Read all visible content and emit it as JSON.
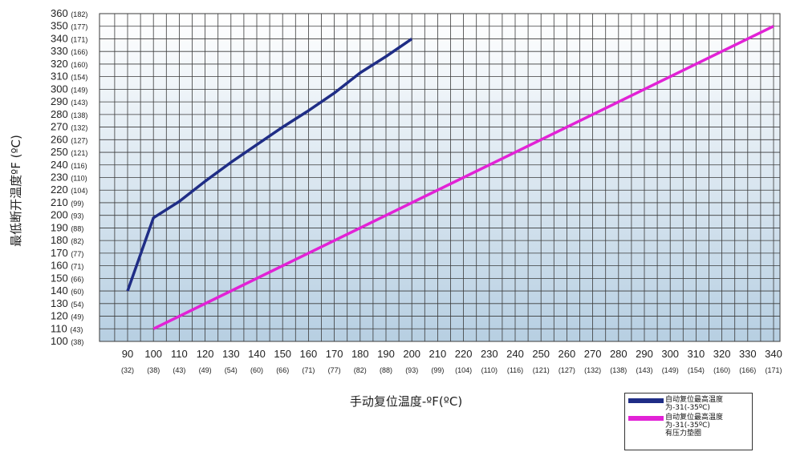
{
  "colors": {
    "series1": "#1f2d86",
    "series2": "#e222d6",
    "grid": "#3a3a3a",
    "bg_top": "#ffffff",
    "bg_bottom": "#b7cfe2"
  },
  "chart_data": {
    "type": "line",
    "xlabel": "手动复位温度-ºF(ºC)",
    "ylabel": "最低断开温度ºF (ºC)",
    "xlim": [
      90,
      340
    ],
    "ylim": [
      100,
      360
    ],
    "grid": true,
    "legend_position": "bottom-right",
    "x_ticks": [
      {
        "f": "90",
        "c": "(32)"
      },
      {
        "f": "100",
        "c": "(38)"
      },
      {
        "f": "110",
        "c": "(43)"
      },
      {
        "f": "120",
        "c": "(49)"
      },
      {
        "f": "130",
        "c": "(54)"
      },
      {
        "f": "140",
        "c": "(60)"
      },
      {
        "f": "150",
        "c": "(66)"
      },
      {
        "f": "160",
        "c": "(71)"
      },
      {
        "f": "170",
        "c": "(77)"
      },
      {
        "f": "180",
        "c": "(82)"
      },
      {
        "f": "190",
        "c": "(88)"
      },
      {
        "f": "200",
        "c": "(93)"
      },
      {
        "f": "210",
        "c": "(99)"
      },
      {
        "f": "220",
        "c": "(104)"
      },
      {
        "f": "230",
        "c": "(110)"
      },
      {
        "f": "240",
        "c": "(116)"
      },
      {
        "f": "250",
        "c": "(121)"
      },
      {
        "f": "260",
        "c": "(127)"
      },
      {
        "f": "270",
        "c": "(132)"
      },
      {
        "f": "280",
        "c": "(138)"
      },
      {
        "f": "290",
        "c": "(143)"
      },
      {
        "f": "300",
        "c": "(149)"
      },
      {
        "f": "310",
        "c": "(154)"
      },
      {
        "f": "320",
        "c": "(160)"
      },
      {
        "f": "330",
        "c": "(166)"
      },
      {
        "f": "340",
        "c": "(171)"
      }
    ],
    "y_ticks": [
      {
        "f": "100",
        "c": "(38)"
      },
      {
        "f": "110",
        "c": "(43)"
      },
      {
        "f": "120",
        "c": "(49)"
      },
      {
        "f": "130",
        "c": "(54)"
      },
      {
        "f": "140",
        "c": "(60)"
      },
      {
        "f": "150",
        "c": "(66)"
      },
      {
        "f": "160",
        "c": "(71)"
      },
      {
        "f": "170",
        "c": "(77)"
      },
      {
        "f": "180",
        "c": "(82)"
      },
      {
        "f": "190",
        "c": "(88)"
      },
      {
        "f": "200",
        "c": "(93)"
      },
      {
        "f": "210",
        "c": "(99)"
      },
      {
        "f": "220",
        "c": "(104)"
      },
      {
        "f": "230",
        "c": "(110)"
      },
      {
        "f": "240",
        "c": "(116)"
      },
      {
        "f": "250",
        "c": "(121)"
      },
      {
        "f": "260",
        "c": "(127)"
      },
      {
        "f": "270",
        "c": "(132)"
      },
      {
        "f": "280",
        "c": "(138)"
      },
      {
        "f": "290",
        "c": "(143)"
      },
      {
        "f": "300",
        "c": "(149)"
      },
      {
        "f": "310",
        "c": "(154)"
      },
      {
        "f": "320",
        "c": "(160)"
      },
      {
        "f": "330",
        "c": "(166)"
      },
      {
        "f": "340",
        "c": "(171)"
      },
      {
        "f": "350",
        "c": "(177)"
      },
      {
        "f": "360",
        "c": "(182)"
      }
    ],
    "series": [
      {
        "name": "自动复位最高温度为-31(-35ºC)",
        "color": "#1f2d86",
        "points": [
          [
            90,
            140
          ],
          [
            100,
            198
          ],
          [
            110,
            211
          ],
          [
            120,
            227
          ],
          [
            130,
            242
          ],
          [
            140,
            256
          ],
          [
            150,
            270
          ],
          [
            160,
            283
          ],
          [
            170,
            297
          ],
          [
            180,
            313
          ],
          [
            190,
            326
          ],
          [
            200,
            340
          ]
        ]
      },
      {
        "name": "自动复位最高温度为-31(-35ºC)有压力垫圈",
        "color": "#e222d6",
        "points": [
          [
            100,
            110
          ],
          [
            340,
            350
          ]
        ]
      }
    ]
  },
  "legend": [
    {
      "lines": [
        "自动复位最高温度",
        "为-31(-35ºC)"
      ]
    },
    {
      "lines": [
        "自动复位最高温度",
        "为-31(-35ºC)",
        "有压力垫圈"
      ]
    }
  ]
}
